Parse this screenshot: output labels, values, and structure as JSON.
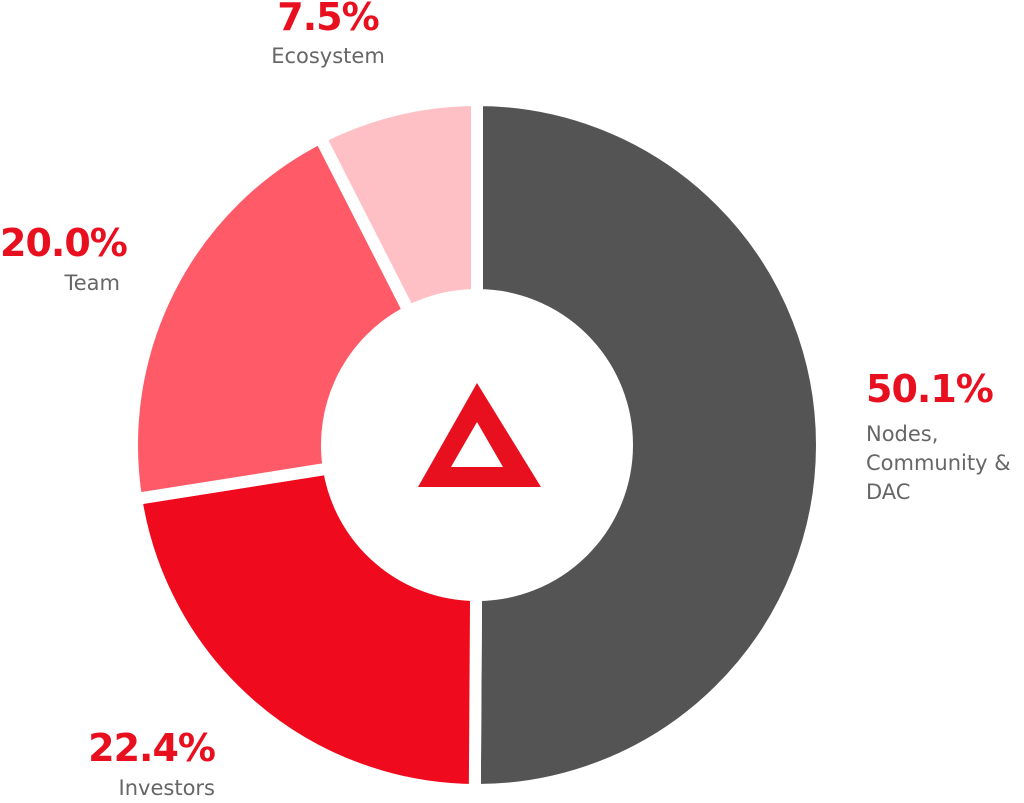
{
  "chart_data": {
    "type": "donut",
    "categories": [
      "Nodes, Community & DAC",
      "Investors",
      "Team",
      "Ecosystem"
    ],
    "values": [
      50.1,
      22.4,
      20.0,
      7.5
    ],
    "value_labels": [
      "50.1%",
      "22.4%",
      "20.0%",
      "7.5%"
    ],
    "colors": [
      "#545454",
      "#f00a1e",
      "#ff5a68",
      "#ffc0c5"
    ]
  }
}
